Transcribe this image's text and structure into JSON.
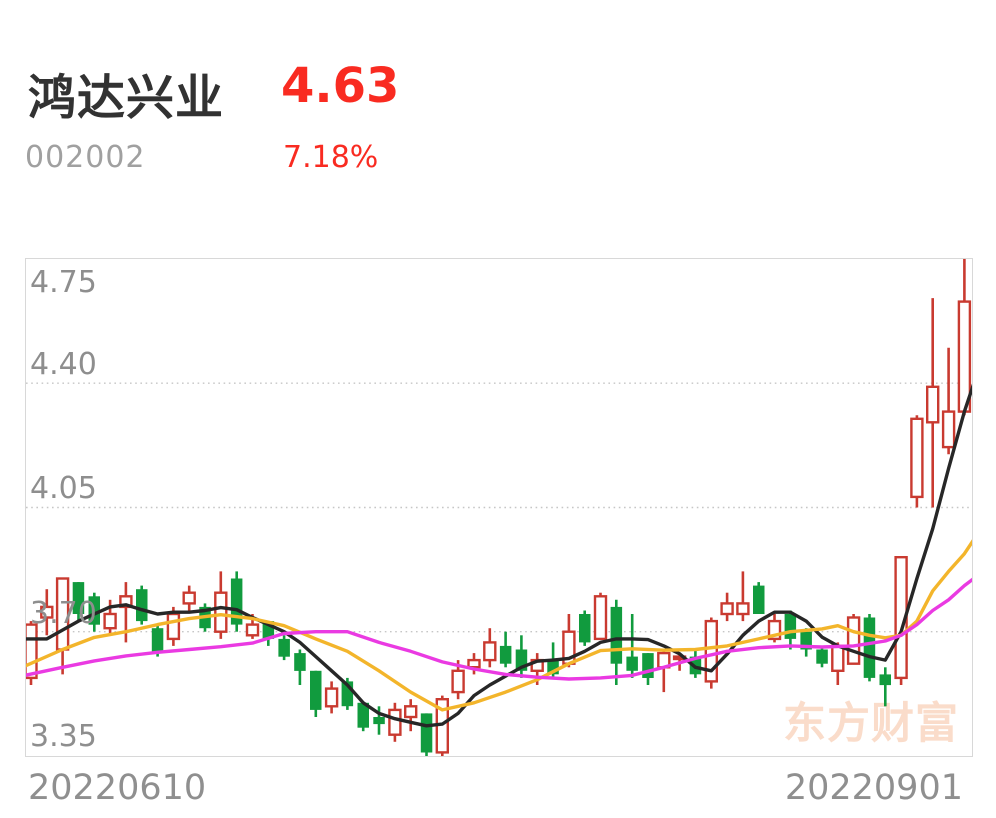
{
  "header": {
    "stock_name": "鸿达兴业",
    "stock_code": "002002",
    "price": "4.63",
    "change_percent": "7.18%",
    "up_text_color": "#f92b21"
  },
  "chart_data": {
    "type": "candlestick",
    "x_axis_labels": [
      "20220610",
      "20220901"
    ],
    "y_ticks": [
      "4.75",
      "4.40",
      "4.05",
      "3.70",
      "3.35"
    ],
    "ylim": [
      3.35,
      4.75
    ],
    "grid": "dotted horizontal lines at 4.40 / 4.05 / 3.70, light gray solid border = 4.75 top and 3.35 bottom",
    "legend_position": "none",
    "watermark": "东方财富",
    "watermark_color": "#fadcca",
    "up_color": "#c93a30",
    "down_color": "#119b3e",
    "candles_format": "[open, high, low, close] — red hollow when close>=open, solid green when close<open",
    "candles": [
      [
        3.57,
        3.73,
        3.55,
        3.72
      ],
      [
        3.74,
        3.82,
        3.69,
        3.77
      ],
      [
        3.65,
        3.85,
        3.58,
        3.85
      ],
      [
        3.84,
        3.84,
        3.73,
        3.75
      ],
      [
        3.8,
        3.81,
        3.7,
        3.72
      ],
      [
        3.71,
        3.79,
        3.69,
        3.75
      ],
      [
        3.77,
        3.84,
        3.67,
        3.8
      ],
      [
        3.82,
        3.83,
        3.72,
        3.73
      ],
      [
        3.71,
        3.72,
        3.63,
        3.64
      ],
      [
        3.68,
        3.77,
        3.66,
        3.75
      ],
      [
        3.78,
        3.83,
        3.76,
        3.81
      ],
      [
        3.77,
        3.78,
        3.7,
        3.71
      ],
      [
        3.7,
        3.87,
        3.68,
        3.81
      ],
      [
        3.85,
        3.87,
        3.7,
        3.72
      ],
      [
        3.69,
        3.75,
        3.68,
        3.72
      ],
      [
        3.73,
        3.73,
        3.66,
        3.68
      ],
      [
        3.68,
        3.69,
        3.62,
        3.63
      ],
      [
        3.64,
        3.65,
        3.55,
        3.59
      ],
      [
        3.59,
        3.59,
        3.46,
        3.48
      ],
      [
        3.49,
        3.56,
        3.47,
        3.54
      ],
      [
        3.56,
        3.57,
        3.48,
        3.49
      ],
      [
        3.5,
        3.5,
        3.42,
        3.43
      ],
      [
        3.46,
        3.49,
        3.41,
        3.44
      ],
      [
        3.41,
        3.5,
        3.39,
        3.48
      ],
      [
        3.46,
        3.51,
        3.42,
        3.49
      ],
      [
        3.47,
        3.47,
        3.35,
        3.36
      ],
      [
        3.36,
        3.52,
        3.35,
        3.51
      ],
      [
        3.53,
        3.62,
        3.51,
        3.59
      ],
      [
        3.6,
        3.64,
        3.58,
        3.62
      ],
      [
        3.62,
        3.71,
        3.6,
        3.67
      ],
      [
        3.66,
        3.7,
        3.6,
        3.61
      ],
      [
        3.65,
        3.69,
        3.57,
        3.59
      ],
      [
        3.59,
        3.64,
        3.55,
        3.62
      ],
      [
        3.62,
        3.67,
        3.57,
        3.58
      ],
      [
        3.61,
        3.75,
        3.6,
        3.7
      ],
      [
        3.75,
        3.76,
        3.66,
        3.67
      ],
      [
        3.68,
        3.81,
        3.68,
        3.8
      ],
      [
        3.77,
        3.79,
        3.55,
        3.61
      ],
      [
        3.63,
        3.75,
        3.57,
        3.59
      ],
      [
        3.64,
        3.64,
        3.55,
        3.57
      ],
      [
        3.6,
        3.65,
        3.53,
        3.64
      ],
      [
        3.63,
        3.64,
        3.59,
        3.63
      ],
      [
        3.63,
        3.65,
        3.57,
        3.58
      ],
      [
        3.56,
        3.74,
        3.54,
        3.73
      ],
      [
        3.75,
        3.81,
        3.73,
        3.78
      ],
      [
        3.75,
        3.87,
        3.73,
        3.78
      ],
      [
        3.83,
        3.84,
        3.75,
        3.75
      ],
      [
        3.68,
        3.75,
        3.67,
        3.73
      ],
      [
        3.75,
        3.76,
        3.65,
        3.68
      ],
      [
        3.7,
        3.71,
        3.63,
        3.65
      ],
      [
        3.65,
        3.66,
        3.6,
        3.61
      ],
      [
        3.59,
        3.67,
        3.55,
        3.66
      ],
      [
        3.61,
        3.75,
        3.61,
        3.74
      ],
      [
        3.74,
        3.75,
        3.56,
        3.57
      ],
      [
        3.58,
        3.6,
        3.49,
        3.55
      ],
      [
        3.57,
        3.91,
        3.55,
        3.91
      ],
      [
        4.08,
        4.31,
        4.05,
        4.3
      ],
      [
        4.29,
        4.64,
        4.05,
        4.39
      ],
      [
        4.22,
        4.5,
        4.2,
        4.32
      ],
      [
        4.32,
        4.75,
        4.31,
        4.63
      ]
    ],
    "ma_lines": [
      {
        "name": "ma-line-black",
        "color": "#272727",
        "width": 3.4,
        "points": [
          [
            -0.3,
            3.68
          ],
          [
            1,
            3.68
          ],
          [
            3,
            3.73
          ],
          [
            5,
            3.77
          ],
          [
            6,
            3.776
          ],
          [
            7,
            3.762
          ],
          [
            8,
            3.75
          ],
          [
            9,
            3.755
          ],
          [
            10,
            3.755
          ],
          [
            11,
            3.76
          ],
          [
            12,
            3.768
          ],
          [
            13,
            3.762
          ],
          [
            14,
            3.74
          ],
          [
            15,
            3.72
          ],
          [
            16,
            3.7
          ],
          [
            17,
            3.67
          ],
          [
            18,
            3.63
          ],
          [
            19,
            3.59
          ],
          [
            20,
            3.55
          ],
          [
            21,
            3.5
          ],
          [
            22,
            3.47
          ],
          [
            23,
            3.455
          ],
          [
            24,
            3.445
          ],
          [
            25,
            3.435
          ],
          [
            26,
            3.44
          ],
          [
            27,
            3.47
          ],
          [
            28,
            3.52
          ],
          [
            29,
            3.55
          ],
          [
            30,
            3.575
          ],
          [
            31,
            3.6
          ],
          [
            32,
            3.617
          ],
          [
            33,
            3.62
          ],
          [
            34,
            3.625
          ],
          [
            35,
            3.645
          ],
          [
            36,
            3.67
          ],
          [
            37,
            3.68
          ],
          [
            38,
            3.68
          ],
          [
            39,
            3.678
          ],
          [
            40,
            3.66
          ],
          [
            41,
            3.638
          ],
          [
            42,
            3.6
          ],
          [
            43,
            3.59
          ],
          [
            44,
            3.637
          ],
          [
            45,
            3.69
          ],
          [
            46,
            3.73
          ],
          [
            47,
            3.755
          ],
          [
            48,
            3.755
          ],
          [
            49,
            3.73
          ],
          [
            50,
            3.685
          ],
          [
            51,
            3.66
          ],
          [
            52,
            3.645
          ],
          [
            53,
            3.63
          ],
          [
            54,
            3.62
          ],
          [
            55,
            3.7
          ],
          [
            56,
            3.85
          ],
          [
            57,
            3.99
          ],
          [
            58,
            4.16
          ],
          [
            59,
            4.32
          ],
          [
            59.6,
            4.4
          ]
        ]
      },
      {
        "name": "ma-line-yellow",
        "color": "#f3b52b",
        "width": 3.4,
        "points": [
          [
            -0.3,
            3.605
          ],
          [
            2,
            3.65
          ],
          [
            4,
            3.684
          ],
          [
            6,
            3.7
          ],
          [
            8,
            3.72
          ],
          [
            10,
            3.737
          ],
          [
            12,
            3.748
          ],
          [
            14,
            3.737
          ],
          [
            16,
            3.717
          ],
          [
            18,
            3.68
          ],
          [
            20,
            3.645
          ],
          [
            22,
            3.59
          ],
          [
            24,
            3.53
          ],
          [
            26,
            3.48
          ],
          [
            28,
            3.5
          ],
          [
            30,
            3.53
          ],
          [
            32,
            3.565
          ],
          [
            34,
            3.61
          ],
          [
            36,
            3.647
          ],
          [
            38,
            3.652
          ],
          [
            40,
            3.648
          ],
          [
            42,
            3.65
          ],
          [
            44,
            3.66
          ],
          [
            46,
            3.68
          ],
          [
            48,
            3.7
          ],
          [
            50,
            3.708
          ],
          [
            51,
            3.717
          ],
          [
            52,
            3.7
          ],
          [
            53,
            3.69
          ],
          [
            54,
            3.683
          ],
          [
            55,
            3.69
          ],
          [
            56,
            3.73
          ],
          [
            57,
            3.815
          ],
          [
            58,
            3.87
          ],
          [
            59,
            3.92
          ],
          [
            59.6,
            3.96
          ]
        ]
      },
      {
        "name": "ma-line-magenta",
        "color": "#ea3ae2",
        "width": 3.4,
        "points": [
          [
            -0.3,
            3.578
          ],
          [
            2,
            3.6
          ],
          [
            4,
            3.618
          ],
          [
            6,
            3.632
          ],
          [
            8,
            3.642
          ],
          [
            10,
            3.65
          ],
          [
            12,
            3.658
          ],
          [
            14,
            3.668
          ],
          [
            16,
            3.695
          ],
          [
            18,
            3.7
          ],
          [
            20,
            3.7
          ],
          [
            22,
            3.67
          ],
          [
            24,
            3.645
          ],
          [
            26,
            3.615
          ],
          [
            28,
            3.595
          ],
          [
            30,
            3.58
          ],
          [
            32,
            3.572
          ],
          [
            34,
            3.567
          ],
          [
            36,
            3.57
          ],
          [
            38,
            3.577
          ],
          [
            40,
            3.6
          ],
          [
            42,
            3.625
          ],
          [
            44,
            3.645
          ],
          [
            46,
            3.655
          ],
          [
            48,
            3.66
          ],
          [
            50,
            3.657
          ],
          [
            52,
            3.66
          ],
          [
            54,
            3.674
          ],
          [
            55,
            3.69
          ],
          [
            56,
            3.72
          ],
          [
            57,
            3.76
          ],
          [
            58,
            3.79
          ],
          [
            59,
            3.83
          ],
          [
            59.6,
            3.85
          ]
        ]
      }
    ]
  }
}
